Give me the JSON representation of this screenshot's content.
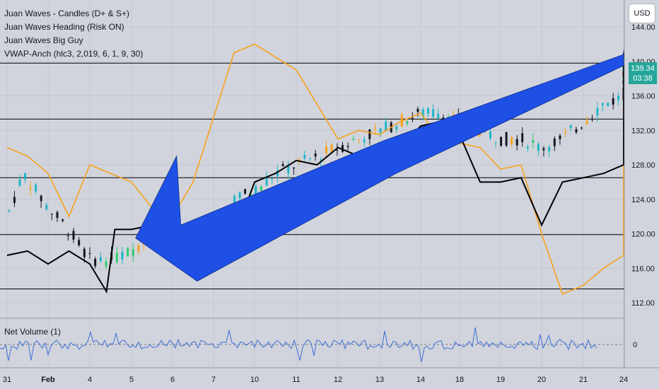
{
  "legend": {
    "items": [
      "Juan Waves - Candles (D+ & S+)",
      "Juan Waves Heading (Risk ON)",
      "Juan Waves Big Guy",
      "VWAP-Anch (hlc3, 2,019, 6, 1, 9, 30)"
    ]
  },
  "currency_button": "USD",
  "price_badge": {
    "price": "139.34",
    "countdown": "03:38"
  },
  "volume_pane": {
    "label": "Net Volume (1)",
    "zero_label": "0"
  },
  "colors": {
    "background": "#d1d4dc",
    "black_line": "#000000",
    "orange_line": "#f7a21b",
    "arrow": "#1e50e6",
    "volume_line": "#3d6fd8",
    "up_candle": "#1eb5c8",
    "down_candle": "#131722",
    "accent_green": "#26a69a"
  },
  "chart_data": {
    "type": "line",
    "y_axis": {
      "ticks": [
        112,
        116,
        120,
        124,
        128,
        132,
        136,
        140,
        144
      ],
      "tick_labels": [
        "112.00",
        "116.00",
        "120.00",
        "124.00",
        "128.00",
        "132.00",
        "136.00",
        "140.00",
        "144.00"
      ],
      "range": [
        110.5,
        145
      ]
    },
    "x_axis": {
      "tick_labels": [
        "31",
        "Feb",
        "4",
        "5",
        "6",
        "7",
        "10",
        "11",
        "12",
        "13",
        "14",
        "18",
        "19",
        "20",
        "21",
        "24"
      ]
    },
    "horizontal_levels": [
      113.6,
      119.9,
      126.5,
      133.3,
      139.8
    ],
    "current_price": 139.34,
    "series": [
      {
        "color": "black",
        "x": [
          0,
          0.5,
          1,
          1.5,
          2,
          2.4,
          2.6,
          3,
          3.5,
          4,
          4.5,
          5,
          5.5,
          6,
          6.5,
          7,
          7.5,
          8,
          8.5,
          9,
          9.5,
          10,
          10.5,
          11,
          11.5,
          12,
          12.5,
          13,
          13.5,
          14,
          14.5,
          15,
          15.5,
          16,
          16.5,
          17,
          17.5,
          18,
          18.5,
          19,
          19.5,
          20,
          20.5,
          21,
          21.3
        ],
        "y": [
          117.5,
          118,
          116.5,
          118,
          116.5,
          113.3,
          120.5,
          120.5,
          121,
          120,
          118,
          119,
          119.5,
          126,
          127,
          128.5,
          128,
          130,
          129,
          130,
          130,
          132.5,
          133,
          131.5,
          126,
          126,
          126.5,
          121,
          126,
          126.5,
          127,
          128,
          140,
          141,
          140,
          138,
          139.5,
          139,
          137.5,
          136.5,
          135.5,
          138.5,
          137,
          139.5,
          141
        ]
      },
      {
        "color": "orange",
        "x": [
          0,
          0.5,
          1,
          1.5,
          2,
          2.5,
          3,
          3.5,
          4,
          4.5,
          5,
          5.5,
          6,
          6.5,
          7,
          7.5,
          8,
          8.5,
          9,
          9.5,
          10,
          10.5,
          11,
          11.5,
          12,
          12.5,
          13,
          13.5,
          14,
          14.5,
          15,
          15.5,
          16,
          16.5,
          17,
          17.5,
          18,
          18.5,
          19,
          19.5,
          20,
          20.5,
          21,
          21.3
        ],
        "y": [
          130,
          129,
          127,
          122,
          128,
          127,
          126,
          123,
          122,
          126,
          133.5,
          141,
          142,
          140.5,
          139,
          135,
          131,
          132,
          131.5,
          133,
          134,
          131,
          130.5,
          130,
          127.5,
          128,
          120,
          113,
          114,
          116,
          117.5,
          121,
          125.5,
          126.5,
          127,
          124,
          125,
          124.5,
          124,
          124,
          124,
          130,
          130.5,
          135
        ]
      }
    ],
    "volume_series_range": [
      -1,
      1
    ]
  }
}
